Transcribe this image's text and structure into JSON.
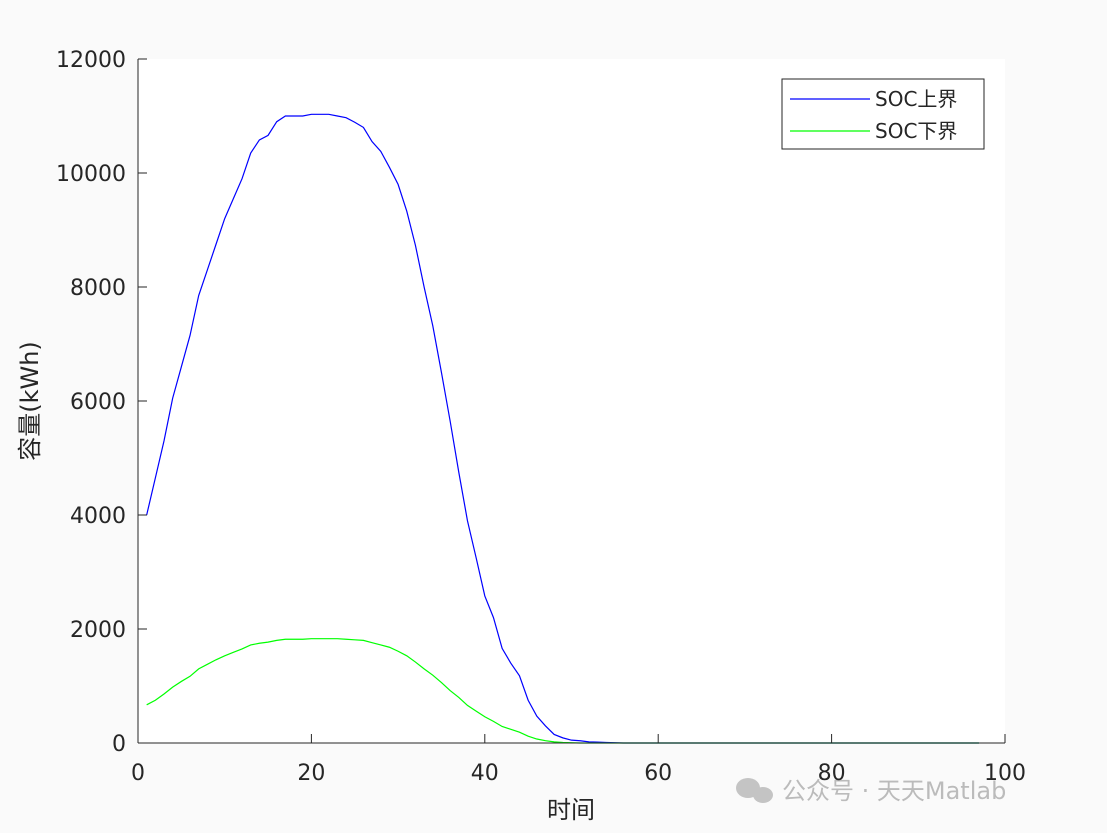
{
  "chart_data": {
    "type": "line",
    "xlabel": "时间",
    "ylabel": "容量(kWh)",
    "x": [
      1,
      2,
      3,
      4,
      5,
      6,
      7,
      8,
      9,
      10,
      11,
      12,
      13,
      14,
      15,
      16,
      17,
      18,
      19,
      20,
      21,
      22,
      23,
      24,
      25,
      26,
      27,
      28,
      29,
      30,
      31,
      32,
      33,
      34,
      35,
      36,
      37,
      38,
      39,
      40,
      41,
      42,
      43,
      44,
      45,
      46,
      47,
      48,
      49,
      50,
      51,
      52,
      53,
      54,
      55,
      56,
      57,
      58,
      59,
      60,
      61,
      62,
      63,
      64,
      65,
      66,
      67,
      68,
      69,
      70,
      71,
      72,
      73,
      74,
      75,
      76,
      77,
      78,
      79,
      80,
      81,
      82,
      83,
      84,
      85,
      86,
      87,
      88,
      89,
      90,
      91,
      92,
      93,
      94,
      95,
      96,
      97
    ],
    "series": [
      {
        "name": "SOC上界",
        "color": "#0000ff",
        "values": [
          4000,
          4650,
          5300,
          6050,
          6600,
          7150,
          7850,
          8300,
          8750,
          9200,
          9550,
          9900,
          10350,
          10580,
          10660,
          10900,
          11000,
          11000,
          11000,
          11030,
          11030,
          11030,
          11000,
          10970,
          10890,
          10800,
          10550,
          10380,
          10100,
          9800,
          9330,
          8730,
          8000,
          7320,
          6500,
          5650,
          4750,
          3900,
          3250,
          2580,
          2200,
          1660,
          1400,
          1180,
          750,
          470,
          300,
          150,
          90,
          50,
          40,
          20,
          15,
          10,
          5,
          0,
          0,
          0,
          0,
          0,
          0,
          0,
          0,
          0,
          0,
          0,
          0,
          0,
          0,
          0,
          0,
          0,
          0,
          0,
          0,
          0,
          0,
          0,
          0,
          0,
          0,
          0,
          0,
          0,
          0,
          0,
          0,
          0,
          0,
          0,
          0,
          0,
          0,
          0,
          0,
          0,
          0
        ]
      },
      {
        "name": "SOC下界",
        "color": "#00ff00",
        "values": [
          670,
          750,
          860,
          980,
          1080,
          1170,
          1300,
          1380,
          1460,
          1530,
          1590,
          1650,
          1720,
          1750,
          1770,
          1800,
          1820,
          1820,
          1820,
          1830,
          1830,
          1830,
          1830,
          1820,
          1810,
          1800,
          1760,
          1720,
          1680,
          1610,
          1530,
          1420,
          1300,
          1190,
          1060,
          920,
          800,
          660,
          560,
          460,
          380,
          290,
          240,
          190,
          120,
          70,
          40,
          20,
          10,
          5,
          0,
          0,
          0,
          0,
          0,
          0,
          0,
          0,
          0,
          0,
          0,
          0,
          0,
          0,
          0,
          0,
          0,
          0,
          0,
          0,
          0,
          0,
          0,
          0,
          0,
          0,
          0,
          0,
          0,
          0,
          0,
          0,
          0,
          0,
          0,
          0,
          0,
          0,
          0,
          0,
          0,
          0,
          0,
          0,
          0,
          0,
          0
        ]
      }
    ],
    "xlim": [
      0,
      100
    ],
    "xticks": [
      0,
      20,
      40,
      60,
      80,
      100
    ],
    "ylim": [
      0,
      12000
    ],
    "yticks": [
      0,
      2000,
      4000,
      6000,
      8000,
      10000,
      12000
    ],
    "legend": "upper-right",
    "watermark": "公众号 · 天天Matlab"
  }
}
